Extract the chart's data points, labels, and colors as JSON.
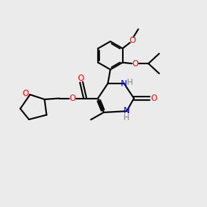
{
  "background_color": "#ebebeb",
  "bond_color": "#000000",
  "bond_width": 1.6,
  "atom_colors": {
    "O": "#ff0000",
    "N": "#0000cd",
    "NH_color": "#808080"
  },
  "font_size_atom": 8.5,
  "fig_width": 3.0,
  "fig_height": 3.0
}
